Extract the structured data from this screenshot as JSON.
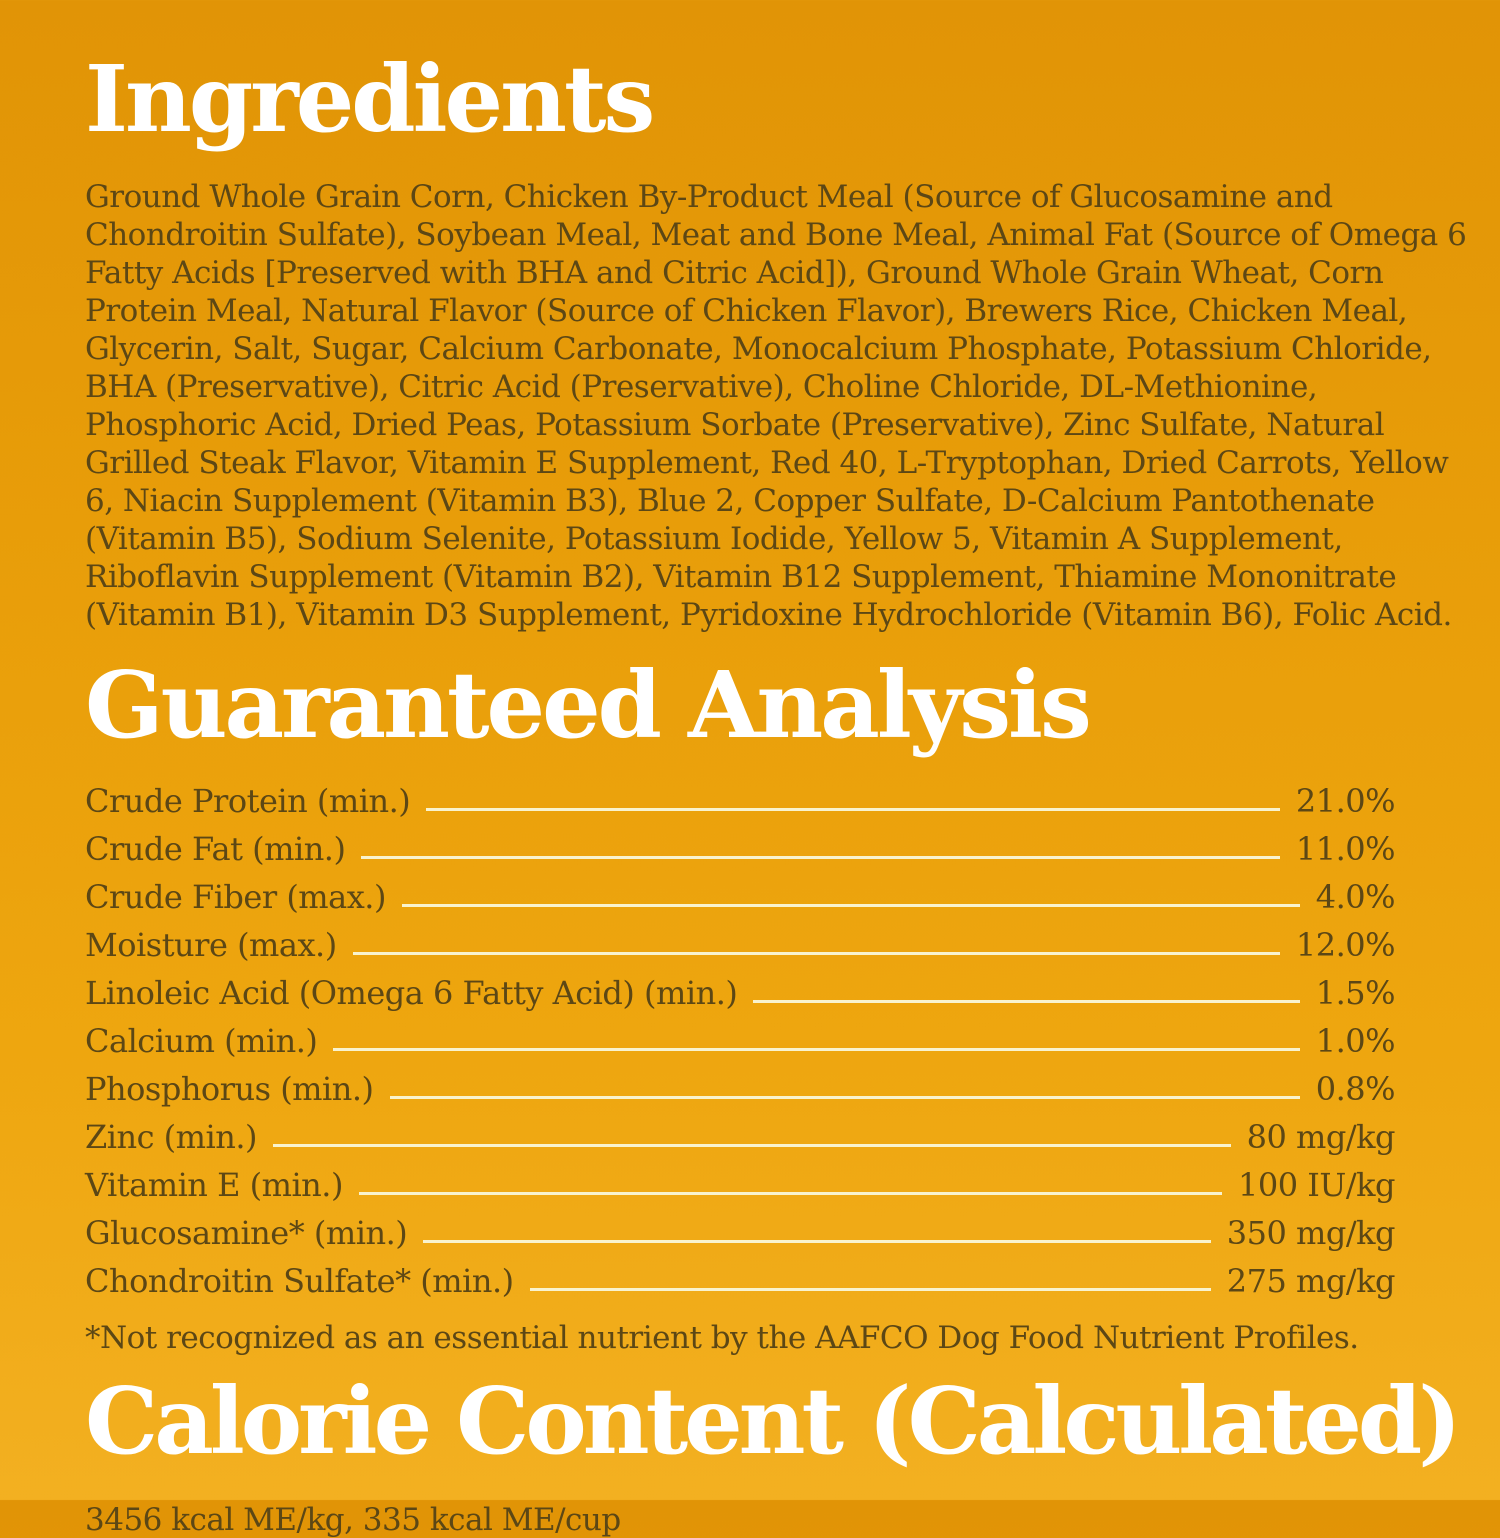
{
  "colors": {
    "background_top": "#E19406",
    "background_bottom": "#F3B021",
    "heading_text": "#FFFFFF",
    "body_text": "#5C4715",
    "leader_line": "#F9F3CE"
  },
  "ingredients": {
    "title": "Ingredients",
    "body": "Ground Whole Grain Corn, Chicken By-Product Meal (Source of Glucosamine and Chondroitin Sulfate), Soybean Meal, Meat and Bone Meal, Animal Fat (Source of Omega 6 Fatty Acids [Preserved with BHA and Citric Acid]), Ground Whole Grain Wheat, Corn Protein Meal, Natural Flavor (Source of Chicken Flavor), Brewers Rice, Chicken Meal, Glycerin, Salt, Sugar, Calcium Carbonate, Monocalcium Phosphate, Potassium Chloride, BHA (Preservative), Citric Acid (Preservative), Choline Chloride, DL-Methionine, Phosphoric Acid, Dried Peas, Potassium Sorbate (Preservative), Zinc Sulfate, Natural Grilled Steak Flavor, Vitamin E Supplement, Red 40, L-Tryptophan, Dried Carrots, Yellow 6, Niacin Supplement (Vitamin B3), Blue 2, Copper Sulfate, D-Calcium Pantothenate (Vitamin B5), Sodium Selenite, Potassium Iodide, Yellow 5, Vitamin A Supplement, Riboflavin Supplement (Vitamin B2), Vitamin B12 Supplement, Thiamine Mononitrate (Vitamin B1), Vitamin D3 Supplement, Pyridoxine Hydrochloride (Vitamin B6), Folic Acid."
  },
  "guaranteed_analysis": {
    "title": "Guaranteed Analysis",
    "rows": [
      {
        "label": "Crude Protein (min.)",
        "value": "21.0%"
      },
      {
        "label": "Crude Fat (min.)",
        "value": "11.0%"
      },
      {
        "label": "Crude Fiber (max.)",
        "value": "4.0%"
      },
      {
        "label": "Moisture (max.)",
        "value": "12.0%"
      },
      {
        "label": "Linoleic Acid (Omega 6 Fatty Acid) (min.)",
        "value": "1.5%"
      },
      {
        "label": "Calcium (min.)",
        "value": "1.0%"
      },
      {
        "label": "Phosphorus (min.)",
        "value": "0.8%"
      },
      {
        "label": "Zinc (min.)",
        "value": "80 mg/kg"
      },
      {
        "label": "Vitamin E (min.)",
        "value": "100 IU/kg"
      },
      {
        "label": "Glucosamine* (min.)",
        "value": "350 mg/kg"
      },
      {
        "label": "Chondroitin Sulfate* (min.)",
        "value": "275 mg/kg"
      }
    ],
    "footnote": "*Not recognized as an essential nutrient by the AAFCO Dog Food Nutrient Profiles."
  },
  "calorie_content": {
    "title": "Calorie Content (Calculated)",
    "body": "3456 kcal ME/kg, 335 kcal ME/cup"
  }
}
